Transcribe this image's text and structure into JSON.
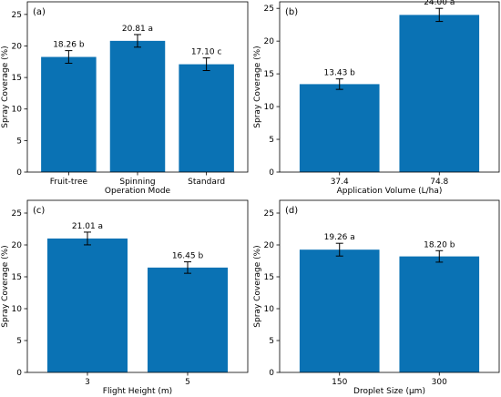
{
  "figure": {
    "bar_color": "#0a72b4",
    "error_bar_color": "#000000",
    "background_color": "#ffffff"
  },
  "chart_data": [
    {
      "type": "bar",
      "panel_label": "(a)",
      "categories": [
        "Fruit-tree",
        "Spinning",
        "Standard"
      ],
      "values": [
        18.26,
        20.81,
        17.1
      ],
      "errors": [
        1.0,
        1.0,
        1.0
      ],
      "value_labels": [
        "18.26 b",
        "20.81 a",
        "17.10 c"
      ],
      "xlabel": "Operation Mode",
      "ylabel": "Spray Coverage (%)",
      "ylim": [
        0,
        27
      ],
      "yticks": [
        0,
        5,
        10,
        15,
        20,
        25
      ],
      "grid": false,
      "legend": false
    },
    {
      "type": "bar",
      "panel_label": "(b)",
      "categories": [
        "37.4",
        "74.8"
      ],
      "values": [
        13.43,
        24.0
      ],
      "errors": [
        0.8,
        1.0
      ],
      "value_labels": [
        "13.43 b",
        "24.00 a"
      ],
      "xlabel": "Application Volume (L/ha)",
      "ylabel": "Spray Coverage (%)",
      "ylim": [
        0,
        26
      ],
      "yticks": [
        0,
        5,
        10,
        15,
        20,
        25
      ],
      "grid": false,
      "legend": false
    },
    {
      "type": "bar",
      "panel_label": "(c)",
      "categories": [
        "3",
        "5"
      ],
      "values": [
        21.01,
        16.45
      ],
      "errors": [
        1.0,
        0.9
      ],
      "value_labels": [
        "21.01 a",
        "16.45 b"
      ],
      "xlabel": "Flight Height (m)",
      "ylabel": "Spray Coverage (%)",
      "ylim": [
        0,
        27
      ],
      "yticks": [
        0,
        5,
        10,
        15,
        20,
        25
      ],
      "grid": false,
      "legend": false
    },
    {
      "type": "bar",
      "panel_label": "(d)",
      "categories": [
        "150",
        "300"
      ],
      "values": [
        19.26,
        18.2
      ],
      "errors": [
        1.0,
        0.9
      ],
      "value_labels": [
        "19.26 a",
        "18.20 b"
      ],
      "xlabel": "Droplet Size (μm)",
      "ylabel": "Spray Coverage (%)",
      "ylim": [
        0,
        27
      ],
      "yticks": [
        0,
        5,
        10,
        15,
        20,
        25
      ],
      "grid": false,
      "legend": false
    }
  ]
}
